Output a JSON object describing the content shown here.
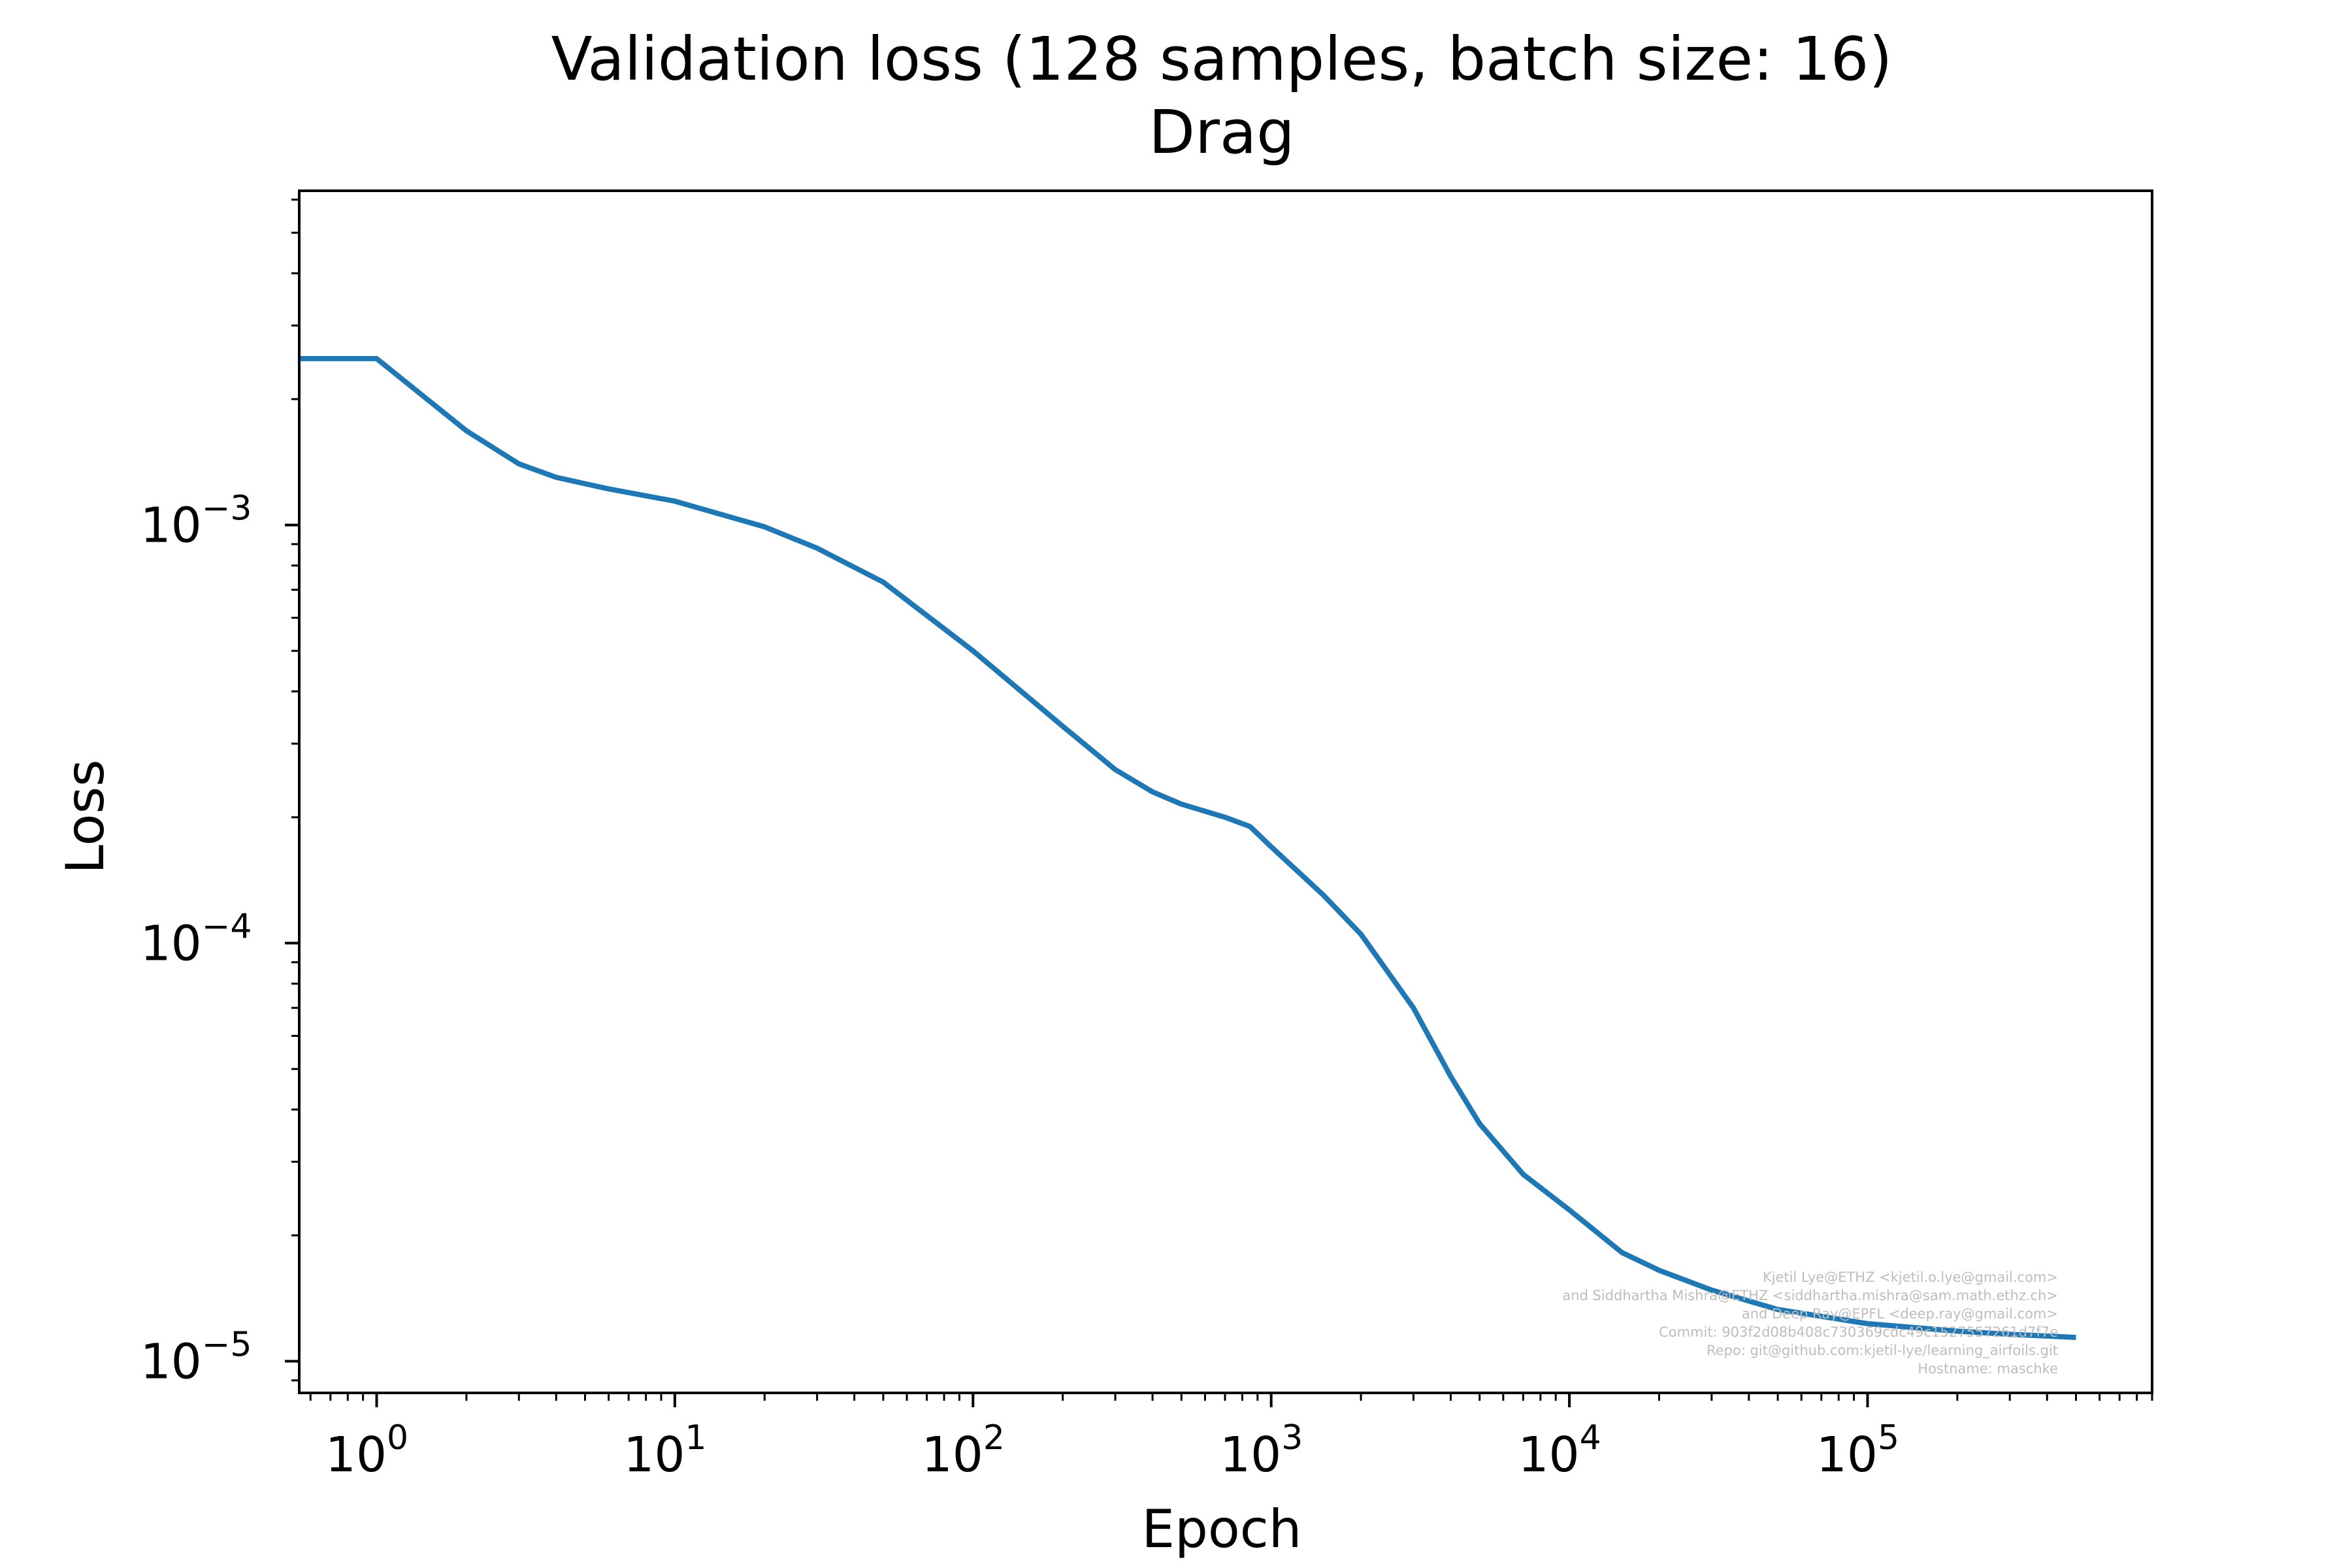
{
  "chart_data": {
    "type": "line",
    "title": "Validation loss (128 samples, batch size: 16)",
    "subtitle": "Drag",
    "xlabel": "Epoch",
    "ylabel": "Loss",
    "xscale": "log",
    "yscale": "log",
    "xlim": [
      0.55,
      900000
    ],
    "ylim": [
      8.4e-06,
      0.0063
    ],
    "grid": false,
    "x_ticks": [
      {
        "base": "10",
        "exp": "0",
        "value": 1
      },
      {
        "base": "10",
        "exp": "1",
        "value": 10
      },
      {
        "base": "10",
        "exp": "2",
        "value": 100
      },
      {
        "base": "10",
        "exp": "3",
        "value": 1000
      },
      {
        "base": "10",
        "exp": "4",
        "value": 10000
      },
      {
        "base": "10",
        "exp": "5",
        "value": 100000
      }
    ],
    "y_ticks": [
      {
        "base": "10",
        "exp": "−3",
        "value": 0.001
      },
      {
        "base": "10",
        "exp": "−4",
        "value": 0.0001
      },
      {
        "base": "10",
        "exp": "−5",
        "value": 1e-05
      }
    ],
    "series": [
      {
        "color": "#1f77b4",
        "x": [
          0.55,
          1,
          2,
          3,
          4,
          6,
          10,
          20,
          30,
          50,
          100,
          200,
          300,
          400,
          500,
          700,
          850,
          1000,
          1500,
          2000,
          3000,
          4000,
          5000,
          7000,
          10000,
          15000,
          20000,
          30000,
          50000,
          100000,
          200000,
          300000,
          500000
        ],
        "y": [
          0.0025,
          0.0025,
          0.00168,
          0.0014,
          0.0013,
          0.00122,
          0.00114,
          0.00099,
          0.00088,
          0.00073,
          0.0005,
          0.00033,
          0.00026,
          0.00023,
          0.000215,
          0.0002,
          0.00019,
          0.00017,
          0.00013,
          0.000105,
          7e-05,
          4.8e-05,
          3.7e-05,
          2.8e-05,
          2.3e-05,
          1.82e-05,
          1.65e-05,
          1.48e-05,
          1.33e-05,
          1.23e-05,
          1.18e-05,
          1.16e-05,
          1.14e-05
        ]
      }
    ]
  },
  "watermark": [
    "Kjetil Lye@ETHZ <kjetil.o.lye@gmail.com>",
    "and Siddhartha Mishra@ETHZ <siddhartha.mishra@sam.math.ethz.ch>",
    "and Deep Ray@EPFL <deep.ray@gmail.com>",
    "Commit: 903f2d08b408c730369cdc49c1527557261d7f7e",
    "Repo: git@github.com:kjetil-lye/learning_airfoils.git",
    "Hostname: maschke"
  ]
}
